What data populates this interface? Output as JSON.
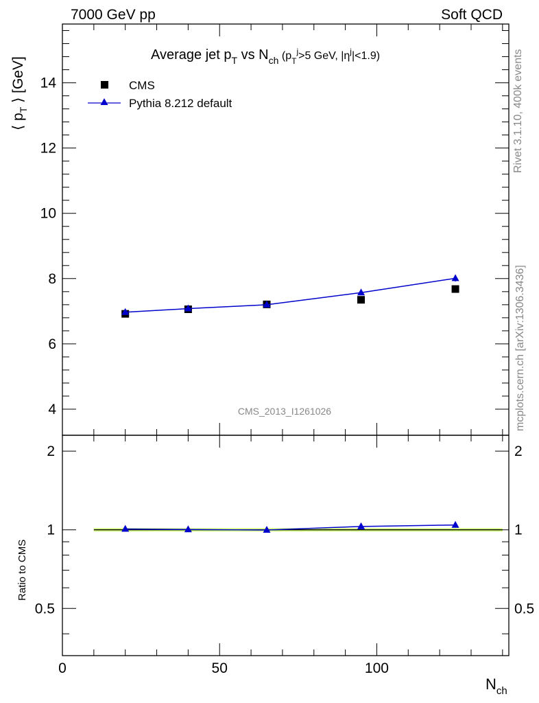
{
  "header": {
    "left": "7000 GeV pp",
    "right": "Soft QCD"
  },
  "side": {
    "rivet": "Rivet 3.1.10,  400k events",
    "mcplots": "mcplots.cern.ch [arXiv:1306.3436]"
  },
  "watermark": "CMS_2013_I1261026",
  "colors": {
    "mc": "#0000cc",
    "data": "#000000",
    "band": "#ccff66"
  },
  "chart_data": [
    {
      "type": "line",
      "title": {
        "main": "Average jet p",
        "sub1": "T",
        "mid": " vs N",
        "sub2": "ch",
        "cut": " (p",
        "cut_sub": "T",
        "cut_sup": "j",
        "cut2": ">5 GeV, |η",
        "cut2_sup": "j",
        "cut3": "|<1.9)"
      },
      "ylabel": {
        "a": "⟨ p",
        "sub": "T",
        "b": " ⟩ [GeV]"
      },
      "ylim": [
        3.2,
        15.8
      ],
      "yticks": [
        4,
        6,
        8,
        10,
        12,
        14
      ],
      "ytick_labels": [
        "4",
        "6",
        "8",
        "10",
        "12",
        "14"
      ],
      "legend_placement": "top-left",
      "series": [
        {
          "name": "CMS",
          "marker": "square",
          "x": [
            20,
            40,
            65,
            95,
            125
          ],
          "y": [
            6.92,
            7.06,
            7.21,
            7.35,
            7.68
          ]
        },
        {
          "name": "Pythia 8.212 default",
          "marker": "triangle",
          "x": [
            20,
            40,
            65,
            95,
            125
          ],
          "y": [
            6.97,
            7.08,
            7.2,
            7.57,
            8.01
          ],
          "err": [
            0.03,
            0.03,
            0.04,
            0.06,
            0.1
          ]
        }
      ]
    },
    {
      "type": "line",
      "ylabel": "Ratio to CMS",
      "xlabel": {
        "a": "N",
        "sub": "ch"
      },
      "xlim": [
        0,
        142
      ],
      "xticks": [
        0,
        50,
        100
      ],
      "xtick_labels": [
        "0",
        "50",
        "100"
      ],
      "ylim": [
        0.33,
        2.3
      ],
      "yticks": [
        0.5,
        1,
        2
      ],
      "ytick_labels": [
        "0.5",
        "1",
        "2"
      ],
      "band": {
        "x": [
          10,
          140
        ],
        "y": [
          0.985,
          1.015
        ]
      },
      "series": [
        {
          "name": "Pythia 8.212 default",
          "x": [
            20,
            40,
            65,
            95,
            125
          ],
          "y": [
            1.007,
            1.003,
            0.998,
            1.03,
            1.043
          ]
        }
      ]
    }
  ]
}
